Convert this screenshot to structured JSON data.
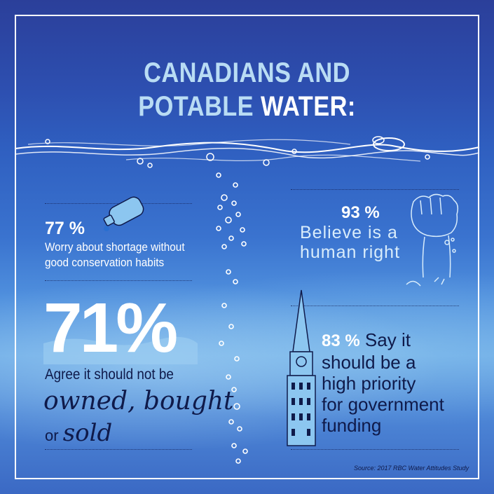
{
  "title": {
    "line1": "CANADIANS AND",
    "line2_a": "POTABLE ",
    "line2_b": "WATER:"
  },
  "stats": {
    "s77": {
      "value": "77 %",
      "text": "Worry about shortage without good conservation habits"
    },
    "s71": {
      "value": "71%",
      "text": "Agree it should not be",
      "script1": "owned, bought",
      "or": "or ",
      "script2": "sold"
    },
    "s93": {
      "value": "93 %",
      "line1": "Believe is a",
      "line2": "human right"
    },
    "s83": {
      "value": "83 %",
      "text_first": " Say it",
      "line2": "should be a",
      "line3": "high priority",
      "line4": "for government",
      "line5": "funding"
    }
  },
  "source": "Source: 2017 RBC Water Attitudes Study",
  "icons": [
    "water-bottle-icon",
    "fist-icon",
    "tower-icon"
  ],
  "colors": {
    "title_light": "#b9dcf4",
    "title_white": "#ffffff",
    "dark_text": "#0f1a4a"
  }
}
